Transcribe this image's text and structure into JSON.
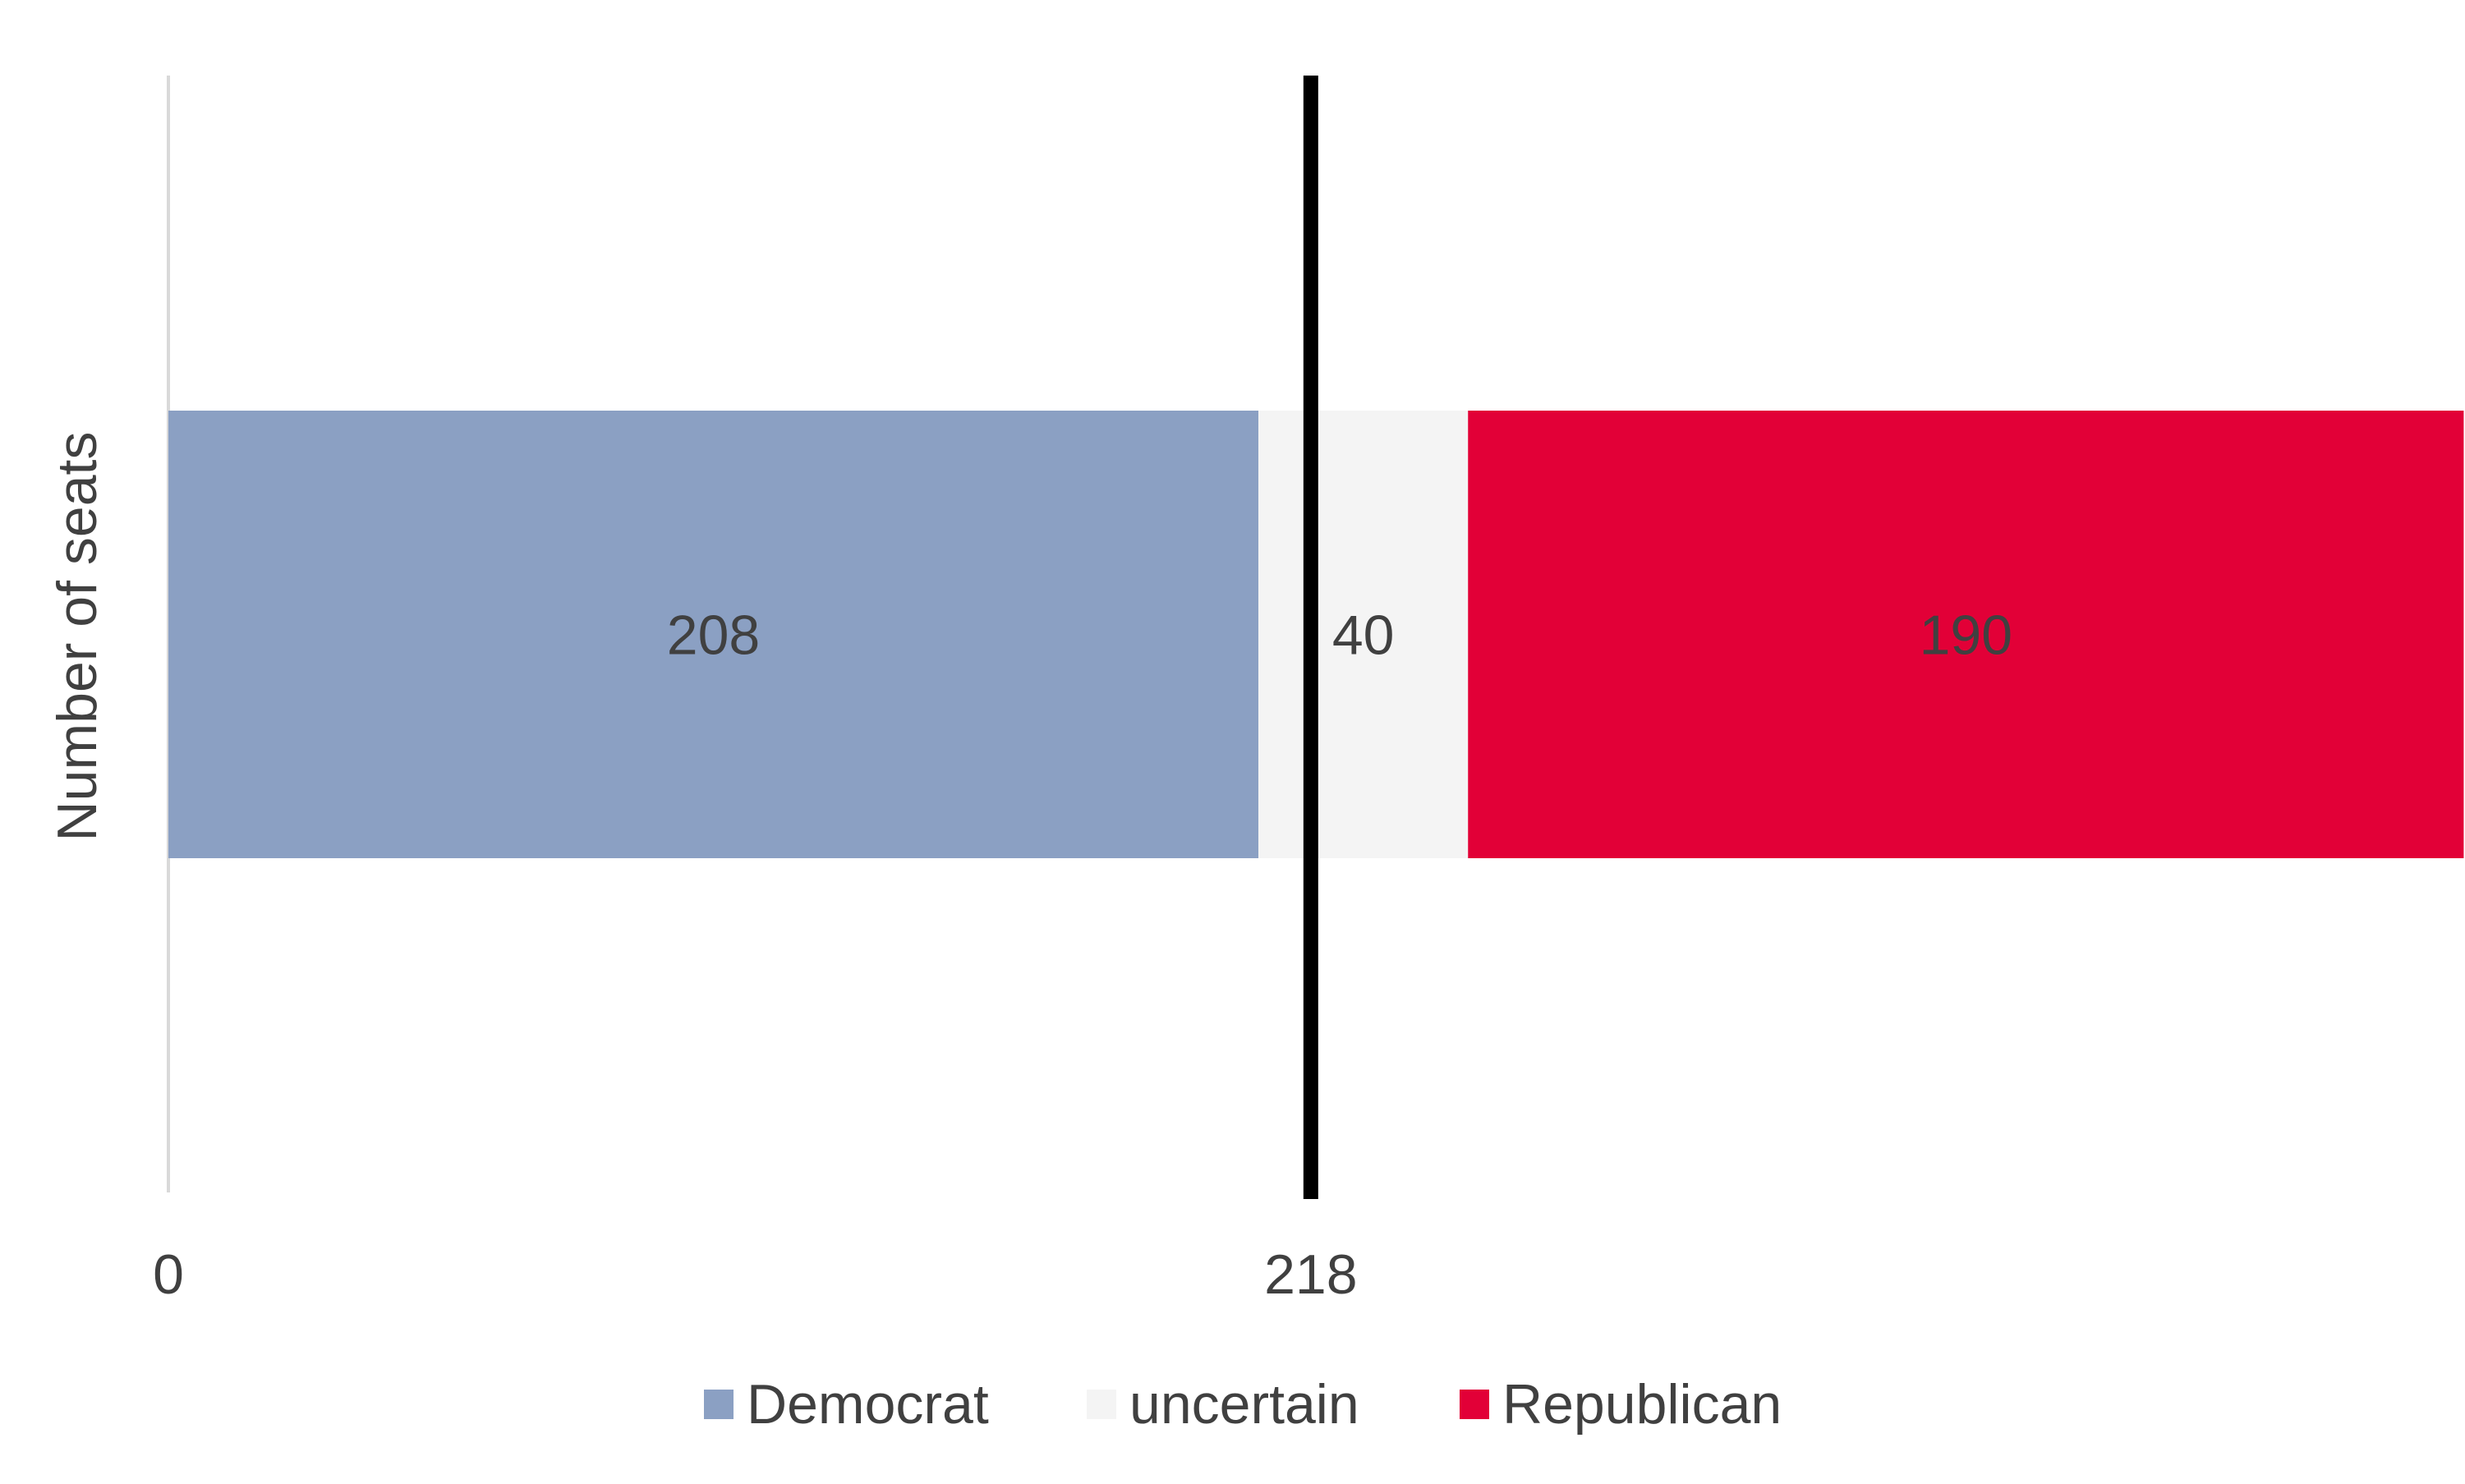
{
  "chart_data": {
    "type": "bar",
    "orientation": "horizontal",
    "stacked": true,
    "title": "",
    "xlabel": "",
    "ylabel": "Number of seats",
    "xlim": [
      0,
      438
    ],
    "x_ticks": [
      0,
      218
    ],
    "x_tick_labels": [
      "0",
      "218"
    ],
    "reference_line": {
      "value": 218,
      "color": "#000000"
    },
    "categories": [
      ""
    ],
    "series": [
      {
        "name": "Democrat",
        "values": [
          208
        ],
        "color": "#8ba0c3"
      },
      {
        "name": "uncertain",
        "values": [
          40
        ],
        "color": "#f4f4f4"
      },
      {
        "name": "Republican",
        "values": [
          190
        ],
        "color": "#e20037"
      }
    ],
    "data_labels": [
      "208",
      "40",
      "190"
    ],
    "legend": {
      "placement": "bottom"
    },
    "grid": false
  }
}
